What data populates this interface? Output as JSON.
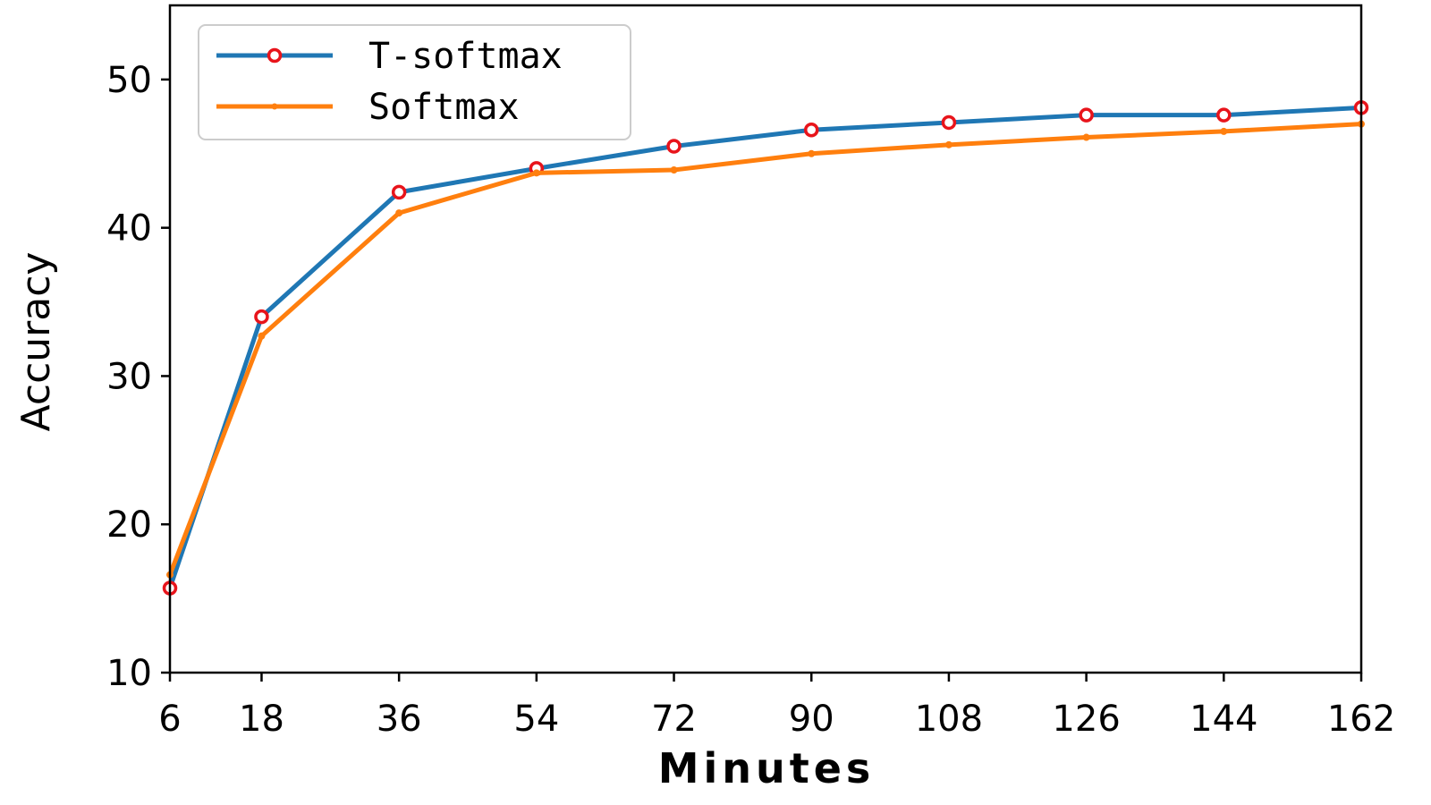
{
  "chart_data": {
    "type": "line",
    "title": "",
    "xlabel": "Minutes",
    "ylabel": "Accuracy",
    "x": [
      6,
      18,
      36,
      54,
      72,
      90,
      108,
      126,
      144,
      162
    ],
    "x_tick_labels": [
      "6",
      "18",
      "36",
      "54",
      "72",
      "90",
      "108",
      "126",
      "144",
      "162"
    ],
    "y_ticks": [
      10,
      20,
      30,
      40,
      50
    ],
    "y_tick_labels": [
      "10",
      "20",
      "30",
      "40",
      "50"
    ],
    "xlim": [
      6,
      162
    ],
    "ylim": [
      10,
      55
    ],
    "grid": false,
    "legend_position": "top-left",
    "series": [
      {
        "name": "T-softmax",
        "color": "#1f77b4",
        "marker": "open-circle",
        "marker_color": "#e8141b",
        "values": [
          15.7,
          34.0,
          42.4,
          44.0,
          45.5,
          46.6,
          47.1,
          47.6,
          47.6,
          48.1
        ]
      },
      {
        "name": "Softmax",
        "color": "#ff7f0e",
        "marker": "small-star",
        "values": [
          16.6,
          32.7,
          41.0,
          43.7,
          43.9,
          45.0,
          45.6,
          46.1,
          46.5,
          47.0
        ]
      }
    ]
  }
}
